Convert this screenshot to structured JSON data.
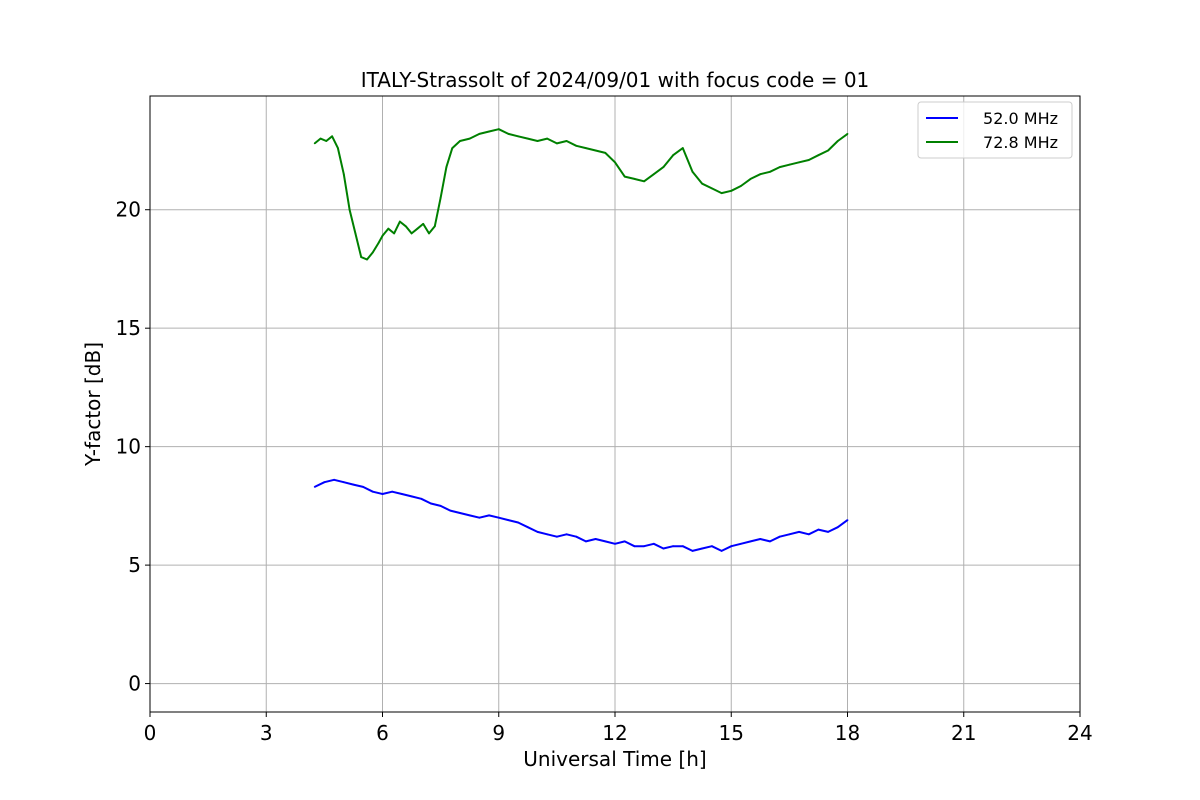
{
  "chart_data": {
    "type": "line",
    "title": "ITALY-Strassolt of 2024/09/01 with focus code = 01",
    "xlabel": "Universal Time [h]",
    "ylabel": "Y-factor [dB]",
    "xlim": [
      0,
      24
    ],
    "ylim": [
      -1.2,
      24.8
    ],
    "xticks": [
      0,
      3,
      6,
      9,
      12,
      15,
      18,
      21,
      24
    ],
    "yticks": [
      0,
      5,
      10,
      15,
      20
    ],
    "grid": true,
    "legend_position": "top-right",
    "series": [
      {
        "name": "52.0 MHz",
        "color": "#0000ff",
        "x": [
          4.25,
          4.5,
          4.75,
          5.0,
          5.25,
          5.5,
          5.75,
          6.0,
          6.25,
          6.5,
          6.75,
          7.0,
          7.25,
          7.5,
          7.75,
          8.0,
          8.25,
          8.5,
          8.75,
          9.0,
          9.25,
          9.5,
          9.75,
          10.0,
          10.25,
          10.5,
          10.75,
          11.0,
          11.25,
          11.5,
          11.75,
          12.0,
          12.25,
          12.5,
          12.75,
          13.0,
          13.25,
          13.5,
          13.75,
          14.0,
          14.25,
          14.5,
          14.75,
          15.0,
          15.25,
          15.5,
          15.75,
          16.0,
          16.25,
          16.5,
          16.75,
          17.0,
          17.25,
          17.5,
          17.75,
          18.0
        ],
        "y": [
          8.3,
          8.5,
          8.6,
          8.5,
          8.4,
          8.3,
          8.1,
          8.0,
          8.1,
          8.0,
          7.9,
          7.8,
          7.6,
          7.5,
          7.3,
          7.2,
          7.1,
          7.0,
          7.1,
          7.0,
          6.9,
          6.8,
          6.6,
          6.4,
          6.3,
          6.2,
          6.3,
          6.2,
          6.0,
          6.1,
          6.0,
          5.9,
          6.0,
          5.8,
          5.8,
          5.9,
          5.7,
          5.8,
          5.8,
          5.6,
          5.7,
          5.8,
          5.6,
          5.8,
          5.9,
          6.0,
          6.1,
          6.0,
          6.2,
          6.3,
          6.4,
          6.3,
          6.5,
          6.4,
          6.6,
          6.9
        ]
      },
      {
        "name": "72.8 MHz",
        "color": "#008000",
        "x": [
          4.25,
          4.4,
          4.55,
          4.7,
          4.85,
          5.0,
          5.15,
          5.3,
          5.45,
          5.6,
          5.75,
          5.9,
          6.0,
          6.15,
          6.3,
          6.45,
          6.6,
          6.75,
          6.9,
          7.05,
          7.2,
          7.35,
          7.5,
          7.65,
          7.8,
          8.0,
          8.25,
          8.5,
          8.75,
          9.0,
          9.25,
          9.5,
          9.75,
          10.0,
          10.25,
          10.5,
          10.75,
          11.0,
          11.25,
          11.5,
          11.75,
          12.0,
          12.25,
          12.5,
          12.75,
          13.0,
          13.25,
          13.5,
          13.75,
          14.0,
          14.25,
          14.5,
          14.75,
          15.0,
          15.25,
          15.5,
          15.75,
          16.0,
          16.25,
          16.5,
          16.75,
          17.0,
          17.25,
          17.5,
          17.75,
          18.0
        ],
        "y": [
          22.8,
          23.0,
          22.9,
          23.1,
          22.6,
          21.5,
          20.0,
          19.0,
          18.0,
          17.9,
          18.2,
          18.6,
          18.9,
          19.2,
          19.0,
          19.5,
          19.3,
          19.0,
          19.2,
          19.4,
          19.0,
          19.3,
          20.5,
          21.8,
          22.6,
          22.9,
          23.0,
          23.2,
          23.3,
          23.4,
          23.2,
          23.1,
          23.0,
          22.9,
          23.0,
          22.8,
          22.9,
          22.7,
          22.6,
          22.5,
          22.4,
          22.0,
          21.4,
          21.3,
          21.2,
          21.5,
          21.8,
          22.3,
          22.6,
          21.6,
          21.1,
          20.9,
          20.7,
          20.8,
          21.0,
          21.3,
          21.5,
          21.6,
          21.8,
          21.9,
          22.0,
          22.1,
          22.3,
          22.5,
          22.9,
          23.2
        ]
      }
    ]
  }
}
